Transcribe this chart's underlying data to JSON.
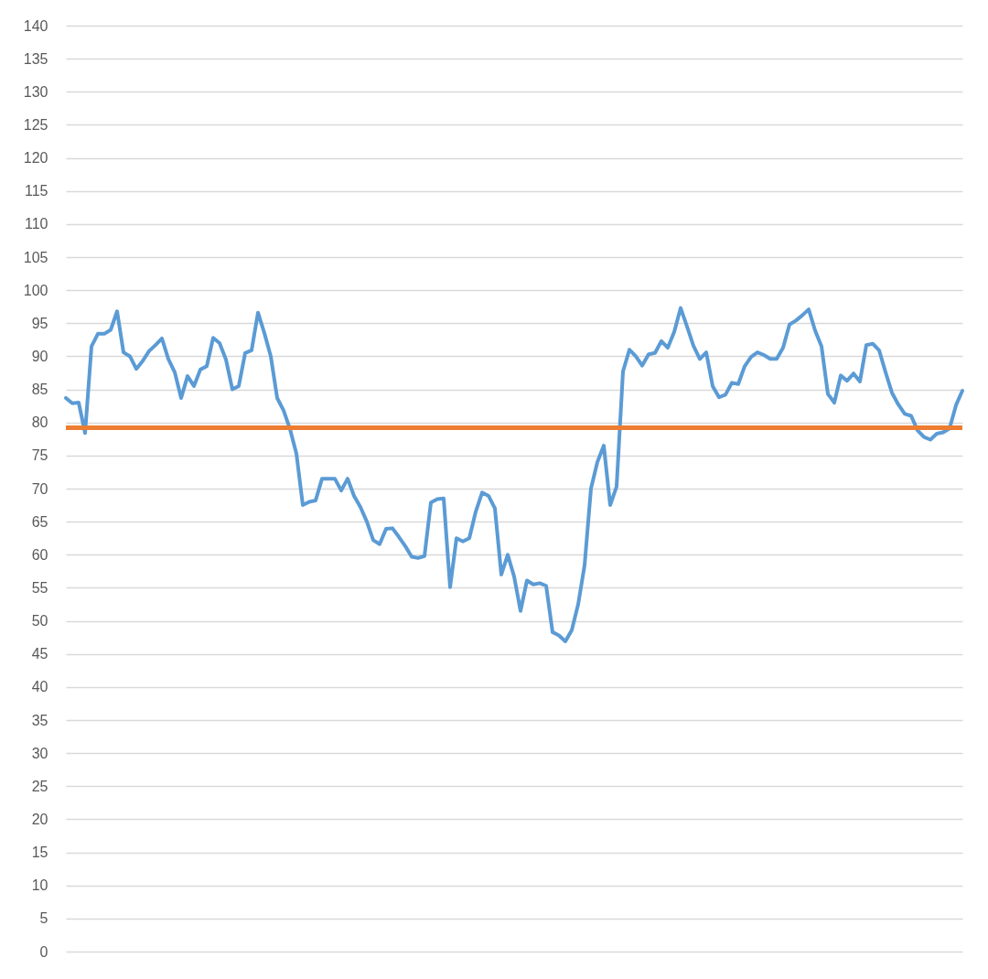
{
  "chart_data": {
    "type": "line",
    "categories": [
      null,
      null,
      null,
      null,
      null,
      null,
      null,
      null,
      null,
      null,
      null,
      null,
      null,
      null,
      null,
      null,
      null,
      null,
      null,
      null,
      null,
      null,
      null,
      null,
      null,
      null,
      null,
      null,
      null,
      null,
      null,
      null,
      null,
      null,
      null,
      null,
      null,
      null,
      null,
      null,
      null,
      null,
      null,
      null,
      null,
      null,
      null,
      null,
      null,
      null,
      null,
      null,
      null,
      null,
      null,
      null,
      null,
      null,
      null,
      null,
      null,
      null,
      null,
      null,
      null,
      null,
      null,
      null,
      null,
      null,
      null,
      null,
      null,
      null,
      null,
      null,
      null,
      null,
      null,
      null,
      null,
      null,
      null,
      null,
      null,
      null,
      null,
      null,
      null,
      null,
      null,
      null,
      null,
      null,
      null,
      null,
      null,
      null,
      null,
      null,
      null,
      null,
      null,
      null,
      null,
      null,
      null,
      null,
      null,
      null,
      null,
      null,
      null,
      null,
      null,
      null,
      null,
      null,
      null,
      null,
      null,
      null,
      null,
      null,
      null,
      null,
      null,
      null,
      null,
      null,
      null,
      null,
      null,
      null,
      null,
      null,
      null,
      null,
      null,
      null,
      null
    ],
    "series": [
      {
        "color": "#5b9bd5",
        "values": [
          83.7,
          82.9,
          83.0,
          78.4,
          91.5,
          93.4,
          93.4,
          94.0,
          96.8,
          90.6,
          90.0,
          88.1,
          89.3,
          90.8,
          91.7,
          92.7,
          89.6,
          87.6,
          83.7,
          87.0,
          85.5,
          88.0,
          88.5,
          92.8,
          92.0,
          89.5,
          85.0,
          85.5,
          90.5,
          90.9,
          96.6,
          93.5,
          90.0,
          83.7,
          81.8,
          79.0,
          75.3,
          67.5,
          68.0,
          68.2,
          71.5,
          71.5,
          71.5,
          69.7,
          71.5,
          68.9,
          67.2,
          65.0,
          62.2,
          61.6,
          63.9,
          64.0,
          62.7,
          61.3,
          59.7,
          59.5,
          59.8,
          67.9,
          68.4,
          68.5,
          55.1,
          62.5,
          62.0,
          62.5,
          66.5,
          69.4,
          68.9,
          67.0,
          57.0,
          60.0,
          56.7,
          51.5,
          56.1,
          55.5,
          55.7,
          55.3,
          48.3,
          47.8,
          46.9,
          48.6,
          52.5,
          58.4,
          70.0,
          74.0,
          76.5,
          67.5,
          70.3,
          87.7,
          91.0,
          90.0,
          88.6,
          90.3,
          90.5,
          92.3,
          91.3,
          93.7,
          97.3,
          94.5,
          91.6,
          89.6,
          90.6,
          85.5,
          83.8,
          84.2,
          86.0,
          85.8,
          88.5,
          89.9,
          90.6,
          90.2,
          89.6,
          89.6,
          91.3,
          94.8,
          95.4,
          96.2,
          97.1,
          93.9,
          91.5,
          84.3,
          83.0,
          87.1,
          86.3,
          87.4,
          86.2,
          91.7,
          91.9,
          90.9,
          87.6,
          84.5,
          82.7,
          81.3,
          81.0,
          78.8,
          77.8,
          77.4,
          78.3,
          78.5,
          79.1,
          82.6,
          84.8
        ]
      }
    ],
    "ylim": [
      0,
      140
    ],
    "yticks": [
      0,
      5,
      10,
      15,
      20,
      25,
      30,
      35,
      40,
      45,
      50,
      55,
      60,
      65,
      70,
      75,
      80,
      85,
      90,
      95,
      100,
      105,
      110,
      115,
      120,
      125,
      130,
      135,
      140
    ],
    "grid": "y",
    "ref_lines": [
      {
        "axis": "y",
        "value": 79.2,
        "color": "#ed7d31"
      }
    ]
  }
}
